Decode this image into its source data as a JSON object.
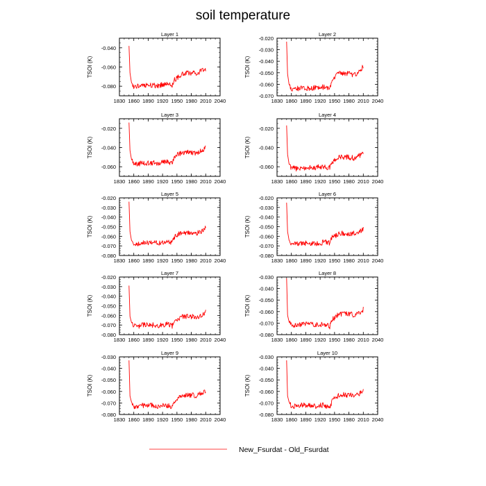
{
  "figure": {
    "title": "soil temperature",
    "legend_label": "New_Fsurdat - Old_Fsurdat",
    "series_color": "#ff0000"
  },
  "chart_data": [
    {
      "type": "line",
      "title": "Layer 1",
      "ylabel": "TSOI  (K)",
      "xlim": [
        1830,
        2040
      ],
      "ylim": [
        -0.09,
        -0.03
      ],
      "yticks": [
        -0.08,
        -0.06,
        -0.04
      ],
      "ytick_labels": [
        "-0.080",
        "-0.060",
        "-0.040"
      ],
      "xticks": [
        1830,
        1860,
        1890,
        1920,
        1950,
        1980,
        2010,
        2040
      ],
      "x": [
        1850,
        1852,
        1855,
        1860,
        1870,
        1880,
        1890,
        1900,
        1910,
        1920,
        1930,
        1940,
        1945,
        1950,
        1960,
        1970,
        1980,
        1990,
        2000,
        2005,
        2010
      ],
      "y": [
        -0.038,
        -0.066,
        -0.076,
        -0.081,
        -0.08,
        -0.08,
        -0.079,
        -0.079,
        -0.08,
        -0.078,
        -0.078,
        -0.079,
        -0.073,
        -0.072,
        -0.067,
        -0.066,
        -0.066,
        -0.067,
        -0.064,
        -0.063,
        -0.062
      ],
      "legend": "top-none"
    },
    {
      "type": "line",
      "title": "Layer 2",
      "ylabel": "TSOI  (K)",
      "xlim": [
        1830,
        2040
      ],
      "ylim": [
        -0.07,
        -0.02
      ],
      "yticks": [
        -0.07,
        -0.06,
        -0.05,
        -0.04,
        -0.03,
        -0.02
      ],
      "ytick_labels": [
        "-0.070",
        "-0.060",
        "-0.050",
        "-0.040",
        "-0.030",
        "-0.020"
      ],
      "xticks": [
        1830,
        1860,
        1890,
        1920,
        1950,
        1980,
        2010,
        2040
      ],
      "x": [
        1850,
        1852,
        1855,
        1860,
        1870,
        1880,
        1890,
        1900,
        1910,
        1920,
        1930,
        1940,
        1945,
        1950,
        1960,
        1970,
        1980,
        1990,
        2000,
        2005,
        2010
      ],
      "y": [
        -0.023,
        -0.051,
        -0.06,
        -0.064,
        -0.064,
        -0.063,
        -0.063,
        -0.064,
        -0.063,
        -0.063,
        -0.062,
        -0.063,
        -0.056,
        -0.054,
        -0.05,
        -0.051,
        -0.05,
        -0.052,
        -0.05,
        -0.048,
        -0.044
      ]
    },
    {
      "type": "line",
      "title": "Layer 3",
      "ylabel": "TSOI  (K)",
      "xlim": [
        1830,
        2040
      ],
      "ylim": [
        -0.07,
        -0.01
      ],
      "yticks": [
        -0.06,
        -0.04,
        -0.02
      ],
      "ytick_labels": [
        "-0.060",
        "-0.040",
        "-0.020"
      ],
      "xticks": [
        1830,
        1860,
        1890,
        1920,
        1950,
        1980,
        2010,
        2040
      ],
      "x": [
        1850,
        1852,
        1855,
        1860,
        1870,
        1880,
        1890,
        1900,
        1910,
        1920,
        1930,
        1940,
        1945,
        1950,
        1960,
        1970,
        1980,
        1990,
        2000,
        2005,
        2010
      ],
      "y": [
        -0.014,
        -0.043,
        -0.052,
        -0.057,
        -0.057,
        -0.056,
        -0.056,
        -0.056,
        -0.056,
        -0.055,
        -0.055,
        -0.056,
        -0.05,
        -0.048,
        -0.045,
        -0.045,
        -0.045,
        -0.046,
        -0.044,
        -0.042,
        -0.039
      ]
    },
    {
      "type": "line",
      "title": "Layer 4",
      "ylabel": "TSOI  (K)",
      "xlim": [
        1830,
        2040
      ],
      "ylim": [
        -0.07,
        -0.01
      ],
      "yticks": [
        -0.06,
        -0.04,
        -0.02
      ],
      "ytick_labels": [
        "-0.060",
        "-0.040",
        "-0.020"
      ],
      "xticks": [
        1830,
        1860,
        1890,
        1920,
        1950,
        1980,
        2010,
        2040
      ],
      "x": [
        1850,
        1852,
        1855,
        1860,
        1870,
        1880,
        1890,
        1900,
        1910,
        1920,
        1930,
        1940,
        1945,
        1950,
        1960,
        1970,
        1980,
        1990,
        2000,
        2005,
        2010
      ],
      "y": [
        -0.017,
        -0.047,
        -0.057,
        -0.061,
        -0.062,
        -0.061,
        -0.061,
        -0.061,
        -0.061,
        -0.06,
        -0.06,
        -0.061,
        -0.055,
        -0.053,
        -0.05,
        -0.05,
        -0.05,
        -0.051,
        -0.049,
        -0.047,
        -0.045
      ]
    },
    {
      "type": "line",
      "title": "Layer 5",
      "ylabel": "TSOI  (K)",
      "xlim": [
        1830,
        2040
      ],
      "ylim": [
        -0.08,
        -0.02
      ],
      "yticks": [
        -0.08,
        -0.07,
        -0.06,
        -0.05,
        -0.04,
        -0.03,
        -0.02
      ],
      "ytick_labels": [
        "-0.080",
        "-0.070",
        "-0.060",
        "-0.050",
        "-0.040",
        "-0.030",
        "-0.020"
      ],
      "xticks": [
        1830,
        1860,
        1890,
        1920,
        1950,
        1980,
        2010,
        2040
      ],
      "x": [
        1850,
        1852,
        1855,
        1860,
        1870,
        1880,
        1890,
        1900,
        1910,
        1920,
        1930,
        1940,
        1945,
        1950,
        1960,
        1970,
        1980,
        1990,
        2000,
        2005,
        2010
      ],
      "y": [
        -0.024,
        -0.055,
        -0.064,
        -0.068,
        -0.068,
        -0.067,
        -0.067,
        -0.067,
        -0.067,
        -0.066,
        -0.066,
        -0.067,
        -0.061,
        -0.059,
        -0.056,
        -0.056,
        -0.056,
        -0.057,
        -0.055,
        -0.054,
        -0.051
      ]
    },
    {
      "type": "line",
      "title": "Layer 6",
      "ylabel": "TSOI  (K)",
      "xlim": [
        1830,
        2040
      ],
      "ylim": [
        -0.08,
        -0.02
      ],
      "yticks": [
        -0.08,
        -0.07,
        -0.06,
        -0.05,
        -0.04,
        -0.03,
        -0.02
      ],
      "ytick_labels": [
        "-0.080",
        "-0.070",
        "-0.060",
        "-0.050",
        "-0.040",
        "-0.030",
        "-0.020"
      ],
      "xticks": [
        1830,
        1860,
        1890,
        1920,
        1950,
        1980,
        2010,
        2040
      ],
      "x": [
        1850,
        1852,
        1855,
        1860,
        1870,
        1880,
        1890,
        1900,
        1910,
        1920,
        1930,
        1940,
        1945,
        1950,
        1960,
        1970,
        1980,
        1990,
        2000,
        2005,
        2010
      ],
      "y": [
        -0.025,
        -0.055,
        -0.064,
        -0.068,
        -0.068,
        -0.068,
        -0.067,
        -0.067,
        -0.068,
        -0.067,
        -0.066,
        -0.067,
        -0.061,
        -0.06,
        -0.057,
        -0.057,
        -0.057,
        -0.057,
        -0.056,
        -0.054,
        -0.052
      ]
    },
    {
      "type": "line",
      "title": "Layer 7",
      "ylabel": "TSOI  (K)",
      "xlim": [
        1830,
        2040
      ],
      "ylim": [
        -0.08,
        -0.02
      ],
      "yticks": [
        -0.08,
        -0.07,
        -0.06,
        -0.05,
        -0.04,
        -0.03,
        -0.02
      ],
      "ytick_labels": [
        "-0.080",
        "-0.070",
        "-0.060",
        "-0.050",
        "-0.040",
        "-0.030",
        "-0.020"
      ],
      "xticks": [
        1830,
        1860,
        1890,
        1920,
        1950,
        1980,
        2010,
        2040
      ],
      "x": [
        1850,
        1852,
        1855,
        1860,
        1870,
        1880,
        1890,
        1900,
        1910,
        1920,
        1930,
        1940,
        1945,
        1950,
        1960,
        1970,
        1980,
        1990,
        2000,
        2005,
        2010
      ],
      "y": [
        -0.029,
        -0.061,
        -0.067,
        -0.071,
        -0.071,
        -0.07,
        -0.07,
        -0.07,
        -0.071,
        -0.07,
        -0.069,
        -0.071,
        -0.066,
        -0.064,
        -0.061,
        -0.061,
        -0.061,
        -0.062,
        -0.06,
        -0.058,
        -0.056
      ]
    },
    {
      "type": "line",
      "title": "Layer 8",
      "ylabel": "TSOI  (K)",
      "xlim": [
        1830,
        2040
      ],
      "ylim": [
        -0.08,
        -0.03
      ],
      "yticks": [
        -0.08,
        -0.07,
        -0.06,
        -0.05,
        -0.04,
        -0.03
      ],
      "ytick_labels": [
        "-0.080",
        "-0.070",
        "-0.060",
        "-0.050",
        "-0.040",
        "-0.030"
      ],
      "xticks": [
        1830,
        1860,
        1890,
        1920,
        1950,
        1980,
        2010,
        2040
      ],
      "x": [
        1850,
        1852,
        1855,
        1860,
        1870,
        1880,
        1890,
        1900,
        1910,
        1920,
        1930,
        1940,
        1945,
        1950,
        1960,
        1970,
        1980,
        1990,
        2000,
        2005,
        2010
      ],
      "y": [
        -0.031,
        -0.063,
        -0.069,
        -0.072,
        -0.072,
        -0.071,
        -0.071,
        -0.071,
        -0.072,
        -0.071,
        -0.071,
        -0.073,
        -0.067,
        -0.065,
        -0.062,
        -0.062,
        -0.062,
        -0.063,
        -0.061,
        -0.06,
        -0.058
      ]
    },
    {
      "type": "line",
      "title": "Layer 9",
      "ylabel": "TSOI  (K)",
      "xlim": [
        1830,
        2040
      ],
      "ylim": [
        -0.08,
        -0.03
      ],
      "yticks": [
        -0.08,
        -0.07,
        -0.06,
        -0.05,
        -0.04,
        -0.03
      ],
      "ytick_labels": [
        "-0.080",
        "-0.070",
        "-0.060",
        "-0.050",
        "-0.040",
        "-0.030"
      ],
      "xticks": [
        1830,
        1860,
        1890,
        1920,
        1950,
        1980,
        2010,
        2040
      ],
      "x": [
        1850,
        1852,
        1855,
        1860,
        1870,
        1880,
        1890,
        1900,
        1910,
        1920,
        1930,
        1940,
        1945,
        1950,
        1960,
        1970,
        1980,
        1990,
        2000,
        2005,
        2010
      ],
      "y": [
        -0.033,
        -0.064,
        -0.069,
        -0.073,
        -0.073,
        -0.072,
        -0.072,
        -0.072,
        -0.073,
        -0.072,
        -0.072,
        -0.074,
        -0.068,
        -0.066,
        -0.063,
        -0.063,
        -0.063,
        -0.064,
        -0.062,
        -0.061,
        -0.059
      ]
    },
    {
      "type": "line",
      "title": "Layer 10",
      "ylabel": "TSOI  (K)",
      "xlim": [
        1830,
        2040
      ],
      "ylim": [
        -0.08,
        -0.03
      ],
      "yticks": [
        -0.08,
        -0.07,
        -0.06,
        -0.05,
        -0.04,
        -0.03
      ],
      "ytick_labels": [
        "-0.080",
        "-0.070",
        "-0.060",
        "-0.050",
        "-0.040",
        "-0.030"
      ],
      "xticks": [
        1830,
        1860,
        1890,
        1920,
        1950,
        1980,
        2010,
        2040
      ],
      "x": [
        1850,
        1852,
        1855,
        1860,
        1870,
        1880,
        1890,
        1900,
        1910,
        1920,
        1930,
        1940,
        1945,
        1950,
        1960,
        1970,
        1980,
        1990,
        2000,
        2005,
        2010
      ],
      "y": [
        -0.033,
        -0.064,
        -0.069,
        -0.073,
        -0.073,
        -0.072,
        -0.072,
        -0.072,
        -0.073,
        -0.072,
        -0.072,
        -0.074,
        -0.068,
        -0.066,
        -0.063,
        -0.063,
        -0.063,
        -0.064,
        -0.062,
        -0.061,
        -0.059
      ]
    }
  ]
}
